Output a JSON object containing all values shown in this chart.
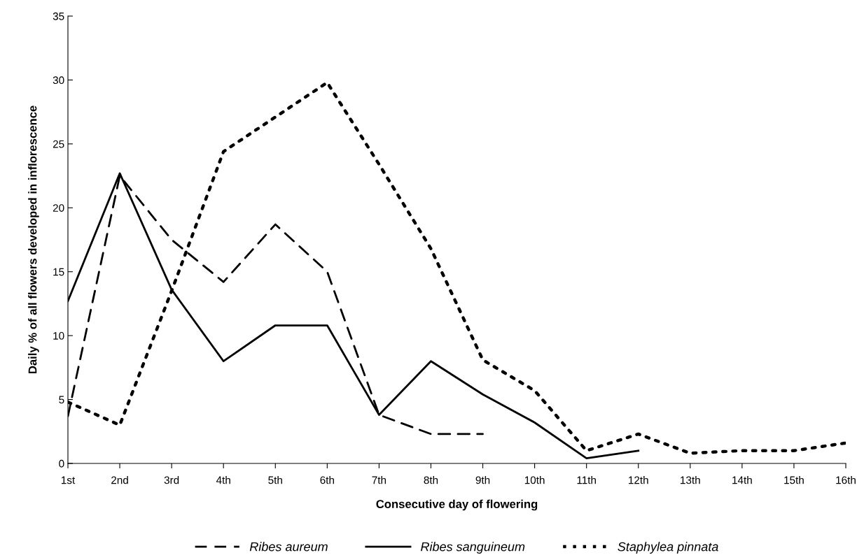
{
  "chart_data": {
    "type": "line",
    "xlabel": "Consecutive day of flowering",
    "ylabel": "Daily % of all flowers developed in inflorescence",
    "categories": [
      "1st",
      "2nd",
      "3rd",
      "4th",
      "5th",
      "6th",
      "7th",
      "8th",
      "9th",
      "10th",
      "11th",
      "12th",
      "13th",
      "14th",
      "15th",
      "16th"
    ],
    "series": [
      {
        "name": "Ribes aureum",
        "color": "#000000",
        "line_style": "dashed",
        "values": [
          3.7,
          22.5,
          17.5,
          14.2,
          18.7,
          15.0,
          3.8,
          2.3,
          2.3,
          null,
          null,
          null,
          null,
          null,
          null,
          null
        ]
      },
      {
        "name": "Ribes sanguineum",
        "color": "#000000",
        "line_style": "solid",
        "values": [
          12.7,
          22.7,
          13.6,
          8.0,
          10.8,
          10.8,
          3.8,
          8.0,
          5.4,
          3.2,
          0.4,
          1.0,
          null,
          null,
          null,
          null
        ]
      },
      {
        "name": "Staphylea pinnata",
        "color": "#000000",
        "line_style": "dotted",
        "values": [
          4.8,
          3.0,
          13.5,
          24.4,
          27.1,
          29.8,
          23.4,
          16.8,
          8.1,
          5.7,
          1.0,
          2.3,
          0.8,
          1.0,
          1.0,
          1.6
        ]
      }
    ],
    "ylim": [
      0,
      35
    ],
    "yticks": [
      0,
      5,
      10,
      15,
      20,
      25,
      30,
      35
    ],
    "grid": false,
    "legend": "bottom",
    "marker": "none"
  }
}
